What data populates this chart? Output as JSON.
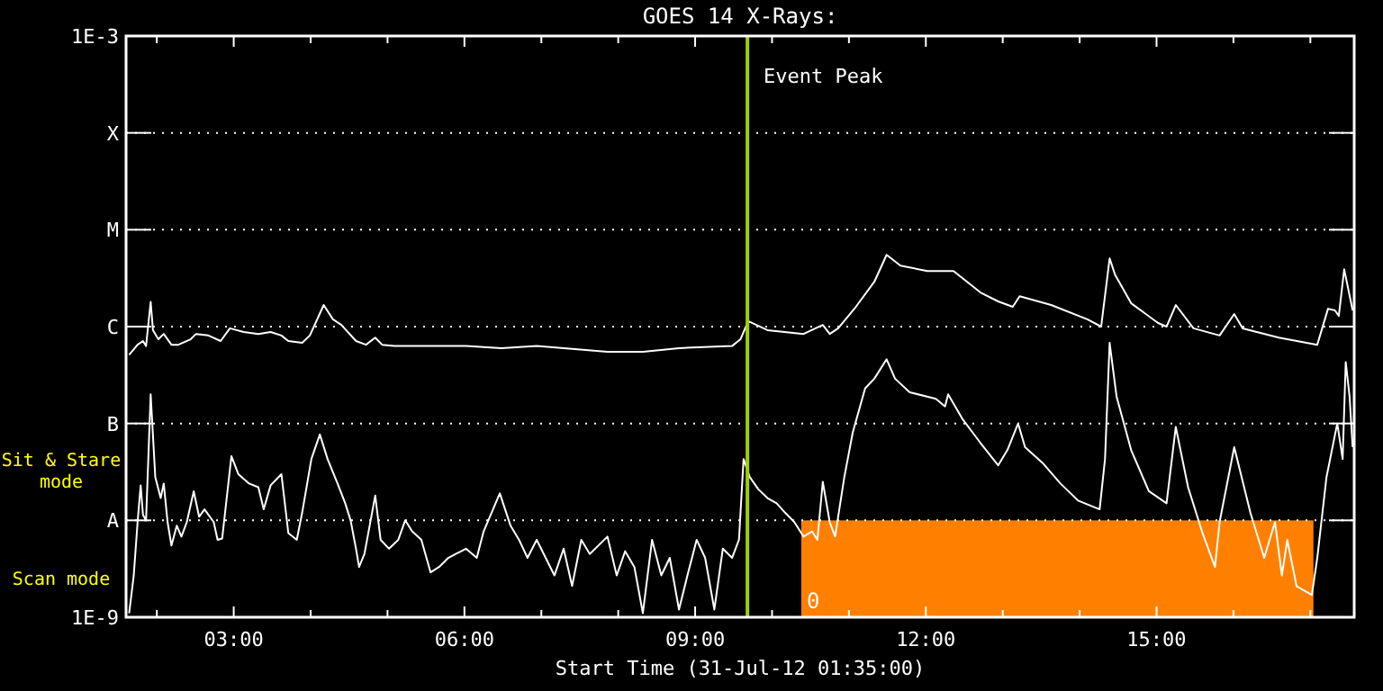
{
  "chart_data": {
    "type": "line",
    "title": "GOES 14 X-Rays:",
    "xlabel": "Start Time (31-Jul-12 01:35:00)",
    "log": "y",
    "grid": "y",
    "xlim": [
      1.6,
      17.57
    ],
    "xticks": [
      {
        "value": 2,
        "label": null
      },
      {
        "value": 3,
        "label": "03:00"
      },
      {
        "value": 4,
        "label": null
      },
      {
        "value": 5,
        "label": null
      },
      {
        "value": 6,
        "label": "06:00"
      },
      {
        "value": 7,
        "label": null
      },
      {
        "value": 8,
        "label": null
      },
      {
        "value": 9,
        "label": "09:00"
      },
      {
        "value": 10,
        "label": null
      },
      {
        "value": 11,
        "label": null
      },
      {
        "value": 12,
        "label": "12:00"
      },
      {
        "value": 13,
        "label": null
      },
      {
        "value": 14,
        "label": null
      },
      {
        "value": 15,
        "label": "15:00"
      },
      {
        "value": 16,
        "label": null
      },
      {
        "value": 17,
        "label": null
      }
    ],
    "ylim": [
      1e-09,
      0.001
    ],
    "yticks": [
      {
        "value": 1e-09,
        "label": "1E-9"
      },
      {
        "value": 1e-08,
        "label": "A"
      },
      {
        "value": 1e-07,
        "label": "B"
      },
      {
        "value": 1e-06,
        "label": "C"
      },
      {
        "value": 1e-05,
        "label": "M"
      },
      {
        "value": 0.0001,
        "label": "X"
      },
      {
        "value": 0.001,
        "label": "1E-3"
      }
    ],
    "series": [
      {
        "color": "#ffffff",
        "x": [
          1.64,
          1.75,
          1.82,
          1.86,
          1.92,
          1.95,
          2.02,
          2.09,
          2.19,
          2.28,
          2.44,
          2.51,
          2.67,
          2.83,
          2.95,
          3.13,
          3.32,
          3.48,
          3.62,
          3.71,
          3.89,
          3.99,
          4.17,
          4.29,
          4.4,
          4.59,
          4.72,
          4.84,
          4.93,
          5.09,
          5.44,
          6.02,
          6.48,
          6.94,
          7.86,
          8.32,
          8.79,
          9.48,
          9.59,
          9.69,
          9.94,
          10.41,
          10.66,
          10.75,
          10.86,
          11.09,
          11.33,
          11.49,
          11.67,
          12.02,
          12.36,
          12.71,
          12.94,
          13.13,
          13.22,
          13.63,
          14.1,
          14.28,
          14.39,
          14.46,
          14.67,
          15.02,
          15.13,
          15.25,
          15.48,
          15.82,
          16.01,
          16.12,
          16.59,
          17.09,
          17.23,
          17.32,
          17.37,
          17.44,
          17.55
        ],
        "values": [
          5.1e-07,
          6.5e-07,
          7.1e-07,
          6.3e-07,
          1.8e-06,
          9.2e-07,
          7.4e-07,
          8.4e-07,
          6.5e-07,
          6.5e-07,
          7.4e-07,
          8.4e-07,
          8.1e-07,
          7.1e-07,
          9.6e-07,
          8.8e-07,
          8.4e-07,
          8.8e-07,
          8.1e-07,
          7.1e-07,
          6.8e-07,
          8.1e-07,
          1.67e-06,
          1.19e-06,
          1.04e-06,
          7.1e-07,
          6.5e-07,
          7.7e-07,
          6.5e-07,
          6.3e-07,
          6.3e-07,
          6.3e-07,
          6e-07,
          6.3e-07,
          5.5e-07,
          5.5e-07,
          6e-07,
          6.3e-07,
          7.4e-07,
          1.14e-06,
          9.2e-07,
          8.4e-07,
          1.04e-06,
          8.4e-07,
          9.6e-07,
          1.6e-06,
          2.9e-06,
          5.5e-06,
          4.26e-06,
          3.75e-06,
          3.75e-06,
          2.25e-06,
          1.82e-06,
          1.6e-06,
          2.06e-06,
          1.67e-06,
          1.19e-06,
          1e-06,
          5.06e-06,
          3.44e-06,
          1.74e-06,
          1.09e-06,
          1e-06,
          1.67e-06,
          9.6e-07,
          8.1e-07,
          1.35e-06,
          9.6e-07,
          7.7e-07,
          6.5e-07,
          1.53e-06,
          1.47e-06,
          1.29e-06,
          3.9e-06,
          1.47e-06
        ]
      },
      {
        "color": "#ffffff",
        "x": [
          1.64,
          1.7,
          1.75,
          1.79,
          1.82,
          1.86,
          1.92,
          1.98,
          2.05,
          2.09,
          2.14,
          2.19,
          2.26,
          2.32,
          2.39,
          2.48,
          2.55,
          2.62,
          2.74,
          2.79,
          2.85,
          2.97,
          3.06,
          3.2,
          3.32,
          3.39,
          3.48,
          3.62,
          3.71,
          3.82,
          3.89,
          4.01,
          4.12,
          4.22,
          4.35,
          4.45,
          4.52,
          4.59,
          4.63,
          4.7,
          4.84,
          4.91,
          5.02,
          5.14,
          5.23,
          5.32,
          5.44,
          5.56,
          5.67,
          5.79,
          6.02,
          6.16,
          6.25,
          6.46,
          6.6,
          6.71,
          6.82,
          6.94,
          7.17,
          7.29,
          7.4,
          7.52,
          7.63,
          7.86,
          7.98,
          8.09,
          8.21,
          8.32,
          8.44,
          8.56,
          8.67,
          8.79,
          8.9,
          9.02,
          9.13,
          9.25,
          9.36,
          9.48,
          9.57,
          9.63,
          9.71,
          9.82,
          9.94,
          10.06,
          10.17,
          10.29,
          10.41,
          10.52,
          10.59,
          10.66,
          10.75,
          10.82,
          10.94,
          11.05,
          11.21,
          11.33,
          11.49,
          11.6,
          11.79,
          12.13,
          12.25,
          12.29,
          12.48,
          12.71,
          12.94,
          13.06,
          13.2,
          13.29,
          13.52,
          13.75,
          13.98,
          14.26,
          14.33,
          14.39,
          14.48,
          14.67,
          14.9,
          15.13,
          15.25,
          15.41,
          15.59,
          15.76,
          15.82,
          16.01,
          16.22,
          16.4,
          16.54,
          16.63,
          16.7,
          16.82,
          16.91,
          17.02,
          17.09,
          17.21,
          17.35,
          17.42,
          17.46,
          17.51,
          17.55
        ],
        "values": [
          1.1e-09,
          2.7e-09,
          9.6e-09,
          2.3e-08,
          1.14e-08,
          1e-08,
          2e-07,
          2.8e-08,
          1.7e-08,
          2.4e-08,
          9.6e-09,
          5.5e-09,
          8.8e-09,
          6.8e-09,
          9.6e-09,
          2e-08,
          1.09e-08,
          1.3e-08,
          9.6e-09,
          6.3e-09,
          6.5e-09,
          4.6e-08,
          3e-08,
          2.4e-08,
          2.2e-08,
          1.3e-08,
          2.3e-08,
          3e-08,
          7.4e-09,
          6.3e-09,
          1.2e-08,
          4.3e-08,
          7.7e-08,
          4.3e-08,
          2.4e-08,
          1.5e-08,
          1e-08,
          5.1e-09,
          3.3e-09,
          4.5e-09,
          1.8e-08,
          6.3e-09,
          5.1e-09,
          6.3e-09,
          1e-08,
          7.7e-09,
          6.3e-09,
          2.9e-09,
          3.3e-09,
          4.1e-09,
          5.1e-09,
          4.1e-09,
          7.7e-09,
          1.9e-08,
          8.8e-09,
          6.3e-09,
          4.1e-09,
          6.3e-09,
          2.7e-09,
          5.1e-09,
          2.1e-09,
          6.3e-09,
          4.5e-09,
          6.8e-09,
          2.7e-09,
          4.8e-09,
          3.3e-09,
          1.1e-09,
          6.3e-09,
          2.7e-09,
          4.1e-09,
          1.2e-09,
          2.7e-09,
          6.3e-09,
          4.1e-09,
          1.2e-09,
          5.1e-09,
          4.1e-09,
          6.3e-09,
          4.3e-08,
          2.8e-08,
          2.1e-08,
          1.7e-08,
          1.5e-08,
          1.2e-08,
          9.6e-09,
          6.8e-09,
          7.7e-09,
          6.3e-09,
          2.5e-08,
          9.6e-09,
          6.8e-09,
          2.8e-08,
          8.1e-08,
          2.3e-07,
          2.9e-07,
          4.6e-07,
          2.9e-07,
          2.1e-07,
          1.8e-07,
          1.5e-07,
          2e-07,
          1.1e-07,
          6.3e-08,
          3.7e-08,
          5.3e-08,
          1e-07,
          5.7e-08,
          3.9e-08,
          2.4e-08,
          1.6e-08,
          1.3e-08,
          4.3e-08,
          6.8e-07,
          1.9e-07,
          5.3e-08,
          2e-08,
          1.5e-08,
          9.2e-08,
          2.2e-08,
          7.7e-09,
          3.3e-09,
          9.6e-09,
          5.7e-08,
          1.2e-08,
          4.1e-09,
          9.6e-09,
          2.7e-09,
          6.3e-09,
          2.1e-09,
          1.9e-09,
          1.7e-09,
          4.1e-09,
          2.8e-08,
          1e-07,
          4.3e-08,
          4.3e-07,
          1.9e-07,
          5.7e-08
        ]
      }
    ],
    "ref_lines": [
      {
        "axis": "x",
        "value": 9.68,
        "label": "Event Peak",
        "color": "#a0d000"
      }
    ],
    "bands": [
      {
        "axis": "x",
        "from": 10.38,
        "to": 17.04,
        "label": "0",
        "color": "#ff8000"
      }
    ],
    "annotations": [
      "Sit & Stare mode",
      "Scan mode"
    ]
  }
}
